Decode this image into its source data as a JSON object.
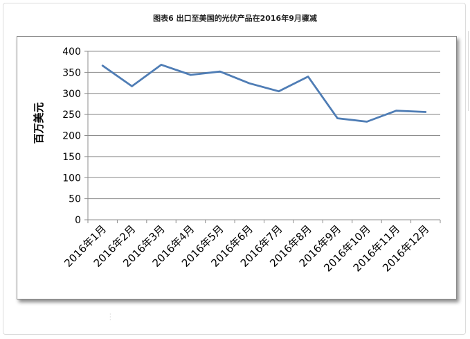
{
  "figure": {
    "title": "图表6  出口至美国的光伏产品在2016年9月骤减"
  },
  "chart_data": {
    "type": "line",
    "title": "",
    "xlabel": "",
    "ylabel": "百万美元",
    "categories": [
      "2016年1月",
      "2016年2月",
      "2016年3月",
      "2016年4月",
      "2016年5月",
      "2016年6月",
      "2016年7月",
      "2016年8月",
      "2016年9月",
      "2016年10月",
      "2016年11月",
      "2016年12月"
    ],
    "series": [
      {
        "values": [
          366,
          317,
          368,
          344,
          352,
          324,
          305,
          340,
          241,
          233,
          259,
          256
        ]
      }
    ],
    "ylim": [
      0,
      400
    ],
    "yticks": [
      0,
      50,
      100,
      150,
      200,
      250,
      300,
      350,
      400
    ],
    "grid": true,
    "legend": "none",
    "line_color": "#4f7db5"
  }
}
